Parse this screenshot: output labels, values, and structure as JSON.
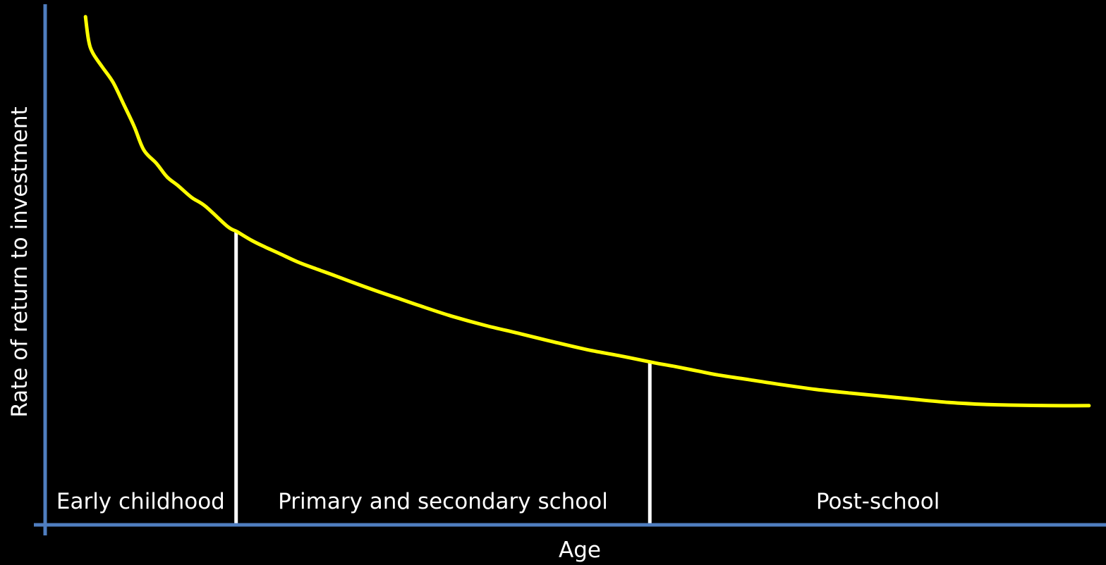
{
  "chart_data": {
    "type": "line",
    "title": "",
    "xlabel": "Age",
    "ylabel": "Rate of return to investment",
    "xlim": [
      0,
      100
    ],
    "ylim": [
      0,
      100
    ],
    "grid": false,
    "stages": [
      {
        "name": "Early childhood",
        "x_start": 0,
        "x_end": 18
      },
      {
        "name": "Primary and secondary school",
        "x_start": 18,
        "x_end": 57
      },
      {
        "name": "Post-school",
        "x_start": 57,
        "x_end": 100
      }
    ],
    "stage_boundaries": [
      18,
      57
    ],
    "series": [
      {
        "color": "#ffff00",
        "x": [
          3.8,
          4.1,
          4.5,
          5.4,
          6.4,
          7.4,
          8.4,
          9.3,
          10.5,
          11.5,
          12.5,
          13.8,
          15.1,
          17.2,
          18.1,
          19.5,
          20.8,
          22.1,
          23.8,
          25.5,
          27.4,
          29.1,
          31.4,
          33.3,
          35.3,
          38.3,
          41.5,
          44.8,
          48.0,
          51.2,
          54.6,
          57.5,
          59.4,
          61.4,
          63.4,
          66.3,
          69.5,
          72.7,
          75.9,
          79.0,
          82.0,
          85.2,
          87.8,
          90.9,
          94.8,
          98.4
        ],
        "y": [
          97.6,
          93.0,
          90.6,
          87.9,
          85.0,
          80.8,
          76.5,
          72.0,
          69.4,
          66.8,
          65.2,
          62.9,
          61.2,
          57.3,
          56.3,
          54.6,
          53.3,
          52.1,
          50.5,
          49.2,
          47.8,
          46.5,
          44.8,
          43.5,
          42.1,
          40.1,
          38.3,
          36.7,
          35.1,
          33.6,
          32.3,
          31.1,
          30.4,
          29.6,
          28.8,
          27.9,
          26.9,
          26.0,
          25.3,
          24.7,
          24.1,
          23.5,
          23.2,
          23.0,
          22.9,
          22.9
        ]
      }
    ]
  }
}
